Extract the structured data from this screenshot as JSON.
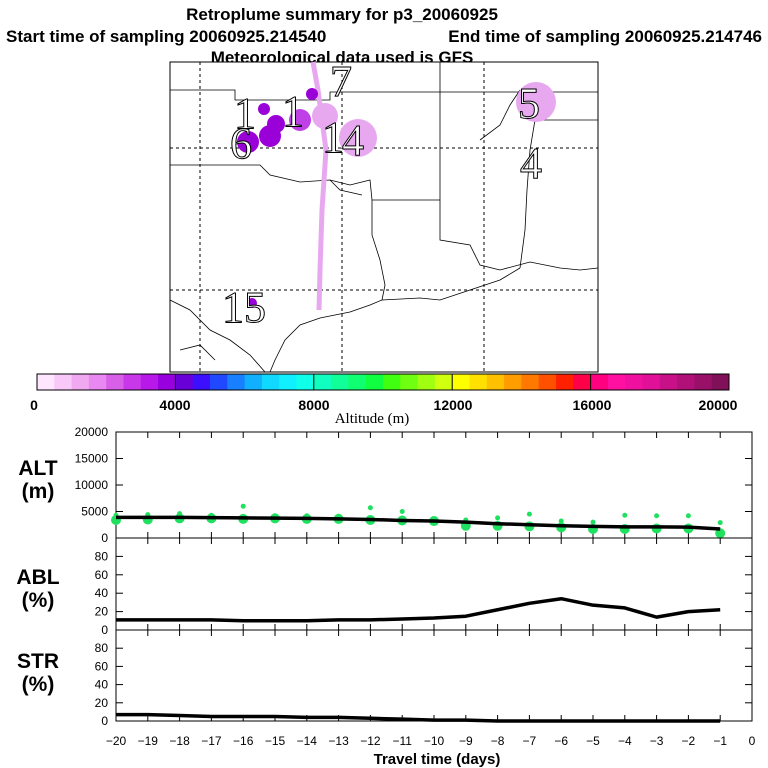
{
  "title": "Retroplume summary for p3_20060925",
  "start_label": "Start time of sampling 20060925.214540",
  "end_label": "End time of sampling 20060925.214746",
  "met_label": "Meteorological data used is GFS",
  "map": {
    "time_markers": [
      "1",
      "6",
      "1",
      "1",
      "7",
      "4",
      "5",
      "4",
      "15"
    ],
    "plume_colors": {
      "low": "#e8a8f0",
      "mid": "#c040e8",
      "high": "#9a00d8"
    }
  },
  "colorbar": {
    "label": "Altitude (m)",
    "ticks": [
      "0",
      "4000",
      "8000",
      "12000",
      "16000",
      "20000"
    ],
    "colors": [
      "#ffe6ff",
      "#f8c8f8",
      "#f0a8f0",
      "#e888f0",
      "#d860e8",
      "#c838e8",
      "#b818e8",
      "#9800e0",
      "#6a00d8",
      "#3c10ff",
      "#2048ff",
      "#1880ff",
      "#10b0ff",
      "#10d8ff",
      "#10f0ff",
      "#10ffe8",
      "#10ffc0",
      "#10ff98",
      "#10ff70",
      "#10ff40",
      "#40ff10",
      "#70ff10",
      "#a0ff10",
      "#d0ff10",
      "#ffff00",
      "#ffe000",
      "#ffc000",
      "#ff9c00",
      "#ff7800",
      "#ff5000",
      "#ff2000",
      "#ff0048",
      "#ff0080",
      "#ff10a0",
      "#f010a0",
      "#e01098",
      "#c81088",
      "#b01078",
      "#981068",
      "#801058"
    ]
  },
  "chart_data": [
    {
      "type": "line",
      "id": "alt",
      "ylabel": [
        "ALT",
        "(m)"
      ],
      "ylim": [
        0,
        20000
      ],
      "yticks": [
        "0",
        "5000",
        "10000",
        "15000",
        "20000"
      ],
      "x": [
        -20,
        -19,
        -18,
        -17,
        -16,
        -15,
        -14,
        -13,
        -12,
        -11,
        -10,
        -9,
        -8,
        -7,
        -6,
        -5,
        -4,
        -3,
        -2,
        -1
      ],
      "values": [
        3900,
        3900,
        3900,
        3850,
        3800,
        3750,
        3700,
        3600,
        3500,
        3300,
        3200,
        3000,
        2700,
        2500,
        2300,
        2200,
        2100,
        2100,
        2050,
        1700
      ],
      "points": {
        "color": "#20e060",
        "values": [
          3400,
          3500,
          3700,
          3700,
          3600,
          3700,
          3600,
          3600,
          3400,
          3300,
          3200,
          2300,
          2300,
          2200,
          2000,
          1700,
          1700,
          1800,
          1800,
          900
        ],
        "upper": [
          4300,
          4400,
          4600,
          4300,
          6000,
          4200,
          4200,
          4100,
          5700,
          5000,
          3600,
          3400,
          3800,
          4500,
          3200,
          3000,
          4300,
          4200,
          4200,
          2900
        ]
      }
    },
    {
      "type": "line",
      "id": "abl",
      "ylabel": [
        "ABL",
        "(%)"
      ],
      "ylim": [
        0,
        100
      ],
      "yticks": [
        "0",
        "20",
        "40",
        "60",
        "80"
      ],
      "x": [
        -20,
        -19,
        -18,
        -17,
        -16,
        -15,
        -14,
        -13,
        -12,
        -11,
        -10,
        -9,
        -8,
        -7,
        -6,
        -5,
        -4,
        -3,
        -2,
        -1
      ],
      "values": [
        11,
        11,
        11,
        11,
        10,
        10,
        10,
        11,
        11,
        12,
        13,
        15,
        22,
        29,
        34,
        27,
        24,
        14,
        20,
        22
      ]
    },
    {
      "type": "line",
      "id": "str",
      "ylabel": [
        "STR",
        "(%)"
      ],
      "ylim": [
        0,
        100
      ],
      "yticks": [
        "0",
        "20",
        "40",
        "60",
        "80"
      ],
      "x": [
        -20,
        -19,
        -18,
        -17,
        -16,
        -15,
        -14,
        -13,
        -12,
        -11,
        -10,
        -9,
        -8,
        -7,
        -6,
        -5,
        -4,
        -3,
        -2,
        -1
      ],
      "values": [
        7,
        7,
        6,
        5,
        5,
        5,
        4,
        4,
        3,
        2,
        1,
        1,
        0,
        0,
        0,
        0,
        0,
        0,
        0,
        0
      ]
    }
  ],
  "xaxis": {
    "label": "Travel time (days)",
    "ticks": [
      "−20",
      "−19",
      "−18",
      "−17",
      "−16",
      "−15",
      "−14",
      "−13",
      "−12",
      "−11",
      "−10",
      "−9",
      "−8",
      "−7",
      "−6",
      "−5",
      "−4",
      "−3",
      "−2",
      "−1",
      "0"
    ]
  }
}
